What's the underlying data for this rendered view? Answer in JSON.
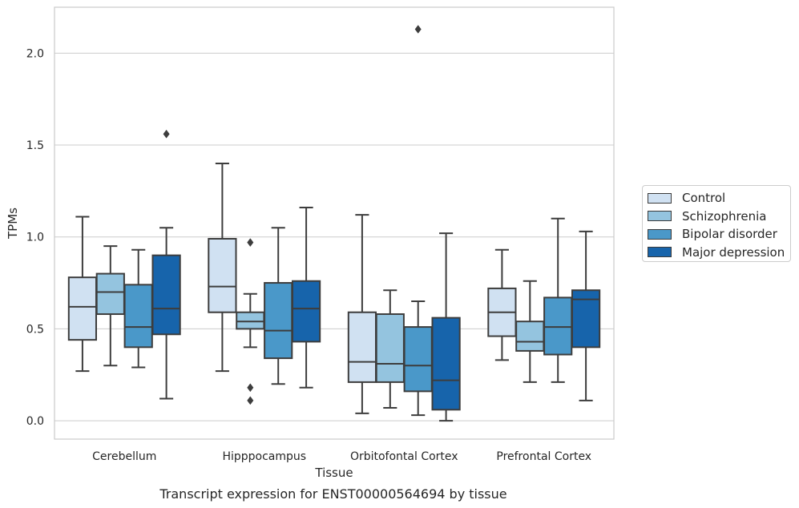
{
  "chart_data": {
    "type": "box",
    "title": "",
    "xlabel": "Tissue",
    "ylabel": "TPMs",
    "ylim": [
      -0.1,
      2.25
    ],
    "yticks": [
      0.0,
      0.5,
      1.0,
      1.5,
      2.0
    ],
    "ytick_labels": [
      "0.0",
      "0.5",
      "1.0",
      "1.5",
      "2.0"
    ],
    "grid": "horizontal",
    "legend_position": "right-outside",
    "categories": [
      "Cerebellum",
      "Hipppocampus",
      "Orbitofontal Cortex",
      "Prefrontal Cortex"
    ],
    "series": [
      {
        "name": "Control",
        "color": "#d0e1f2",
        "boxes": [
          {
            "whislo": 0.27,
            "q1": 0.44,
            "med": 0.62,
            "q3": 0.78,
            "whishi": 1.11,
            "fliers": []
          },
          {
            "whislo": 0.27,
            "q1": 0.59,
            "med": 0.73,
            "q3": 0.99,
            "whishi": 1.4,
            "fliers": []
          },
          {
            "whislo": 0.04,
            "q1": 0.21,
            "med": 0.32,
            "q3": 0.59,
            "whishi": 1.12,
            "fliers": []
          },
          {
            "whislo": 0.33,
            "q1": 0.46,
            "med": 0.59,
            "q3": 0.72,
            "whishi": 0.93,
            "fliers": []
          }
        ]
      },
      {
        "name": "Schizophrenia",
        "color": "#94c4df",
        "boxes": [
          {
            "whislo": 0.3,
            "q1": 0.58,
            "med": 0.7,
            "q3": 0.8,
            "whishi": 0.95,
            "fliers": []
          },
          {
            "whislo": 0.4,
            "q1": 0.5,
            "med": 0.54,
            "q3": 0.59,
            "whishi": 0.69,
            "fliers": [
              0.97,
              0.18,
              0.11
            ]
          },
          {
            "whislo": 0.07,
            "q1": 0.21,
            "med": 0.31,
            "q3": 0.58,
            "whishi": 0.71,
            "fliers": []
          },
          {
            "whislo": 0.21,
            "q1": 0.38,
            "med": 0.43,
            "q3": 0.54,
            "whishi": 0.76,
            "fliers": []
          }
        ]
      },
      {
        "name": "Bipolar disorder",
        "color": "#4a98c9",
        "boxes": [
          {
            "whislo": 0.29,
            "q1": 0.4,
            "med": 0.51,
            "q3": 0.74,
            "whishi": 0.93,
            "fliers": []
          },
          {
            "whislo": 0.2,
            "q1": 0.34,
            "med": 0.49,
            "q3": 0.75,
            "whishi": 1.05,
            "fliers": []
          },
          {
            "whislo": 0.03,
            "q1": 0.16,
            "med": 0.3,
            "q3": 0.51,
            "whishi": 0.65,
            "fliers": [
              2.13
            ]
          },
          {
            "whislo": 0.21,
            "q1": 0.36,
            "med": 0.51,
            "q3": 0.67,
            "whishi": 1.1,
            "fliers": []
          }
        ]
      },
      {
        "name": "Major depression",
        "color": "#1764ab",
        "boxes": [
          {
            "whislo": 0.12,
            "q1": 0.47,
            "med": 0.61,
            "q3": 0.9,
            "whishi": 1.05,
            "fliers": [
              1.56
            ]
          },
          {
            "whislo": 0.18,
            "q1": 0.43,
            "med": 0.61,
            "q3": 0.76,
            "whishi": 1.16,
            "fliers": []
          },
          {
            "whislo": 0.0,
            "q1": 0.06,
            "med": 0.22,
            "q3": 0.56,
            "whishi": 1.02,
            "fliers": []
          },
          {
            "whislo": 0.11,
            "q1": 0.4,
            "med": 0.66,
            "q3": 0.71,
            "whishi": 1.03,
            "fliers": []
          }
        ]
      }
    ],
    "caption": "Transcript expression for ENST00000564694 by tissue"
  }
}
